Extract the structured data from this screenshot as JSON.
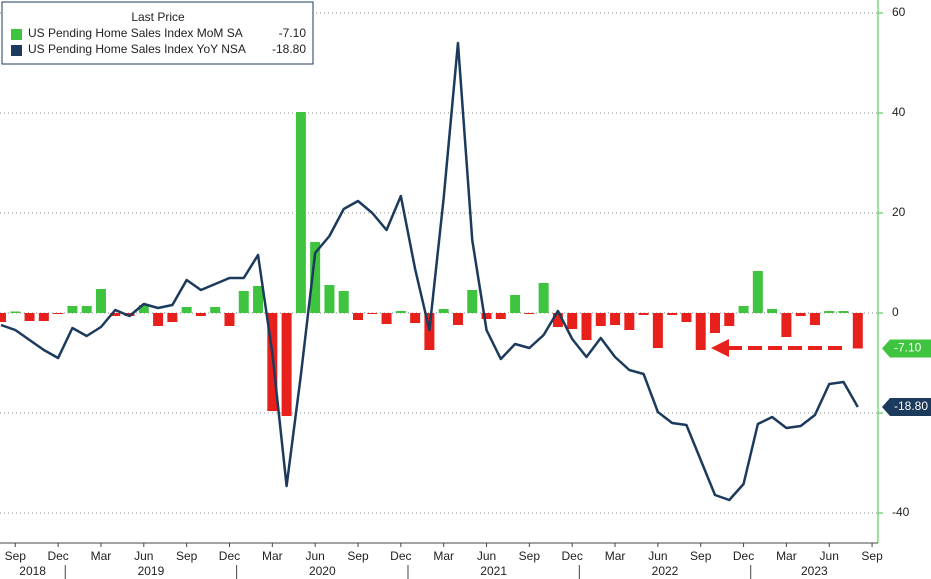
{
  "chart_data": {
    "type": "bar_line",
    "legend_title": "Last Price",
    "legend": "upper left",
    "categories": [
      "2018-08",
      "2018-09",
      "2018-10",
      "2018-11",
      "2018-12",
      "2019-01",
      "2019-02",
      "2019-03",
      "2019-04",
      "2019-05",
      "2019-06",
      "2019-07",
      "2019-08",
      "2019-09",
      "2019-10",
      "2019-11",
      "2019-12",
      "2020-01",
      "2020-02",
      "2020-03",
      "2020-04",
      "2020-05",
      "2020-06",
      "2020-07",
      "2020-08",
      "2020-09",
      "2020-10",
      "2020-11",
      "2020-12",
      "2021-01",
      "2021-02",
      "2021-03",
      "2021-04",
      "2021-05",
      "2021-06",
      "2021-07",
      "2021-08",
      "2021-09",
      "2021-10",
      "2021-11",
      "2021-12",
      "2022-01",
      "2022-02",
      "2022-03",
      "2022-04",
      "2022-05",
      "2022-06",
      "2022-07",
      "2022-08",
      "2022-09",
      "2022-10",
      "2022-11",
      "2022-12",
      "2023-01",
      "2023-02",
      "2023-03",
      "2023-04",
      "2023-05",
      "2023-06",
      "2023-07",
      "2023-08"
    ],
    "series": [
      {
        "name": "US Pending Home Sales Index MoM SA",
        "type": "bar",
        "pos_color": "#3ec43e",
        "neg_color": "#e8201c",
        "last_label": "-7.10",
        "values": [
          -1.8,
          0.3,
          -1.6,
          -1.6,
          -0.2,
          1.4,
          1.4,
          4.8,
          -0.6,
          -0.6,
          1.6,
          -2.6,
          -1.8,
          1.2,
          -0.6,
          1.2,
          -2.6,
          4.4,
          5.4,
          -19.6,
          -20.6,
          40.2,
          14.2,
          5.6,
          4.4,
          -1.4,
          -0.2,
          -2.2,
          0.4,
          -2.0,
          -7.4,
          0.8,
          -2.4,
          4.6,
          -1.2,
          -1.2,
          3.6,
          -0.2,
          6.0,
          -2.8,
          -3.2,
          -5.4,
          -2.6,
          -2.4,
          -3.4,
          -0.4,
          -7.0,
          -0.4,
          -1.8,
          -7.4,
          -4.0,
          -2.6,
          1.4,
          8.4,
          0.8,
          -4.8,
          -0.6,
          -2.4,
          0.4,
          0.4,
          -7.1
        ]
      },
      {
        "name": "US Pending Home Sales Index YoY NSA",
        "type": "line",
        "color": "#1b3a5c",
        "last_label": "-18.80",
        "values": [
          -2.4,
          -3.4,
          -5.4,
          -7.4,
          -9,
          -3,
          -4.6,
          -2.8,
          0.6,
          -0.6,
          1.8,
          1.0,
          1.6,
          6.6,
          4.6,
          5.8,
          7.0,
          7.0,
          11.6,
          -8,
          -34.6,
          -12.4,
          12,
          15.4,
          20.8,
          22.4,
          20,
          16.6,
          23.4,
          8.8,
          -3.4,
          23,
          54,
          14.6,
          -3.4,
          -9.2,
          -6.2,
          -7,
          -4.4,
          0.4,
          -5.2,
          -8.8,
          -5,
          -8.8,
          -11.4,
          -12.2,
          -19.8,
          -22,
          -22.4,
          -29.4,
          -36.4,
          -37.4,
          -34.2,
          -22.2,
          -20.8,
          -23,
          -22.6,
          -20.4,
          -14.2,
          -13.8,
          -18.8
        ]
      }
    ],
    "ylim": [
      -46,
      62.6
    ],
    "yticks": [
      -40,
      -20,
      0,
      20,
      40,
      60
    ],
    "grid": true,
    "xticks": [
      {
        "value": "2018-09",
        "label": "Sep"
      },
      {
        "value": "2018-12",
        "label": "Dec"
      },
      {
        "value": "2019-03",
        "label": "Mar"
      },
      {
        "value": "2019-06",
        "label": "Jun"
      },
      {
        "value": "2019-09",
        "label": "Sep"
      },
      {
        "value": "2019-12",
        "label": "Dec"
      },
      {
        "value": "2020-03",
        "label": "Mar"
      },
      {
        "value": "2020-06",
        "label": "Jun"
      },
      {
        "value": "2020-09",
        "label": "Sep"
      },
      {
        "value": "2020-12",
        "label": "Dec"
      },
      {
        "value": "2021-03",
        "label": "Mar"
      },
      {
        "value": "2021-06",
        "label": "Jun"
      },
      {
        "value": "2021-09",
        "label": "Sep"
      },
      {
        "value": "2021-12",
        "label": "Dec"
      },
      {
        "value": "2022-03",
        "label": "Mar"
      },
      {
        "value": "2022-06",
        "label": "Jun"
      },
      {
        "value": "2022-09",
        "label": "Sep"
      },
      {
        "value": "2022-12",
        "label": "Dec"
      },
      {
        "value": "2023-03",
        "label": "Mar"
      },
      {
        "value": "2023-06",
        "label": "Jun"
      },
      {
        "value": "2023-09",
        "label": "Sep"
      }
    ],
    "year_labels": [
      "2018",
      "2019",
      "2020",
      "2021",
      "2022",
      "2023"
    ]
  }
}
